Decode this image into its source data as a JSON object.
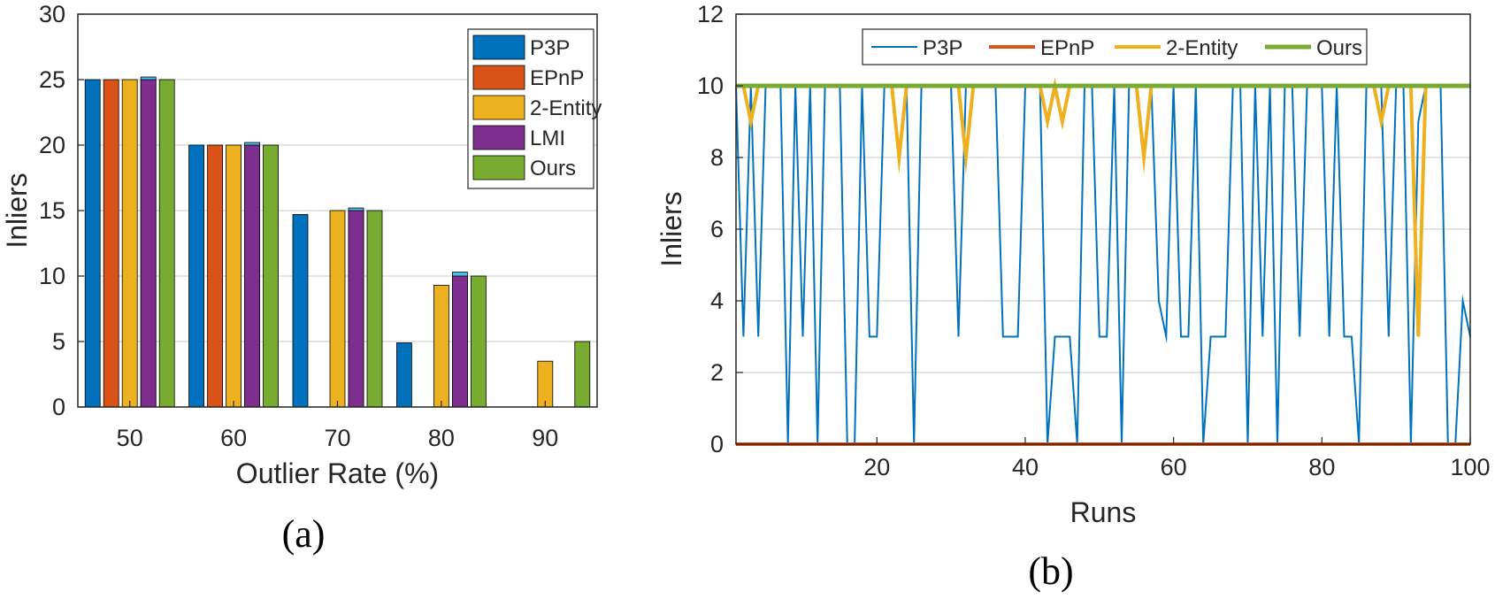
{
  "chart_data": [
    {
      "panel": "(a)",
      "type": "bar",
      "xlabel": "Outlier Rate (%)",
      "ylabel": "Inliers",
      "ylim": [
        0,
        30
      ],
      "yticks": [
        0,
        5,
        10,
        15,
        20,
        25,
        30
      ],
      "categories": [
        "50",
        "60",
        "70",
        "80",
        "90"
      ],
      "grid": "horizontal",
      "legend_position": "top-right",
      "series": [
        {
          "name": "P3P",
          "color": "#0072BD",
          "values": [
            25,
            20,
            14.7,
            4.9,
            0
          ]
        },
        {
          "name": "EPnP",
          "color": "#D95319",
          "values": [
            25,
            20,
            0,
            0,
            0
          ]
        },
        {
          "name": "2-Entity",
          "color": "#EDB120",
          "values": [
            25,
            20,
            15,
            9.3,
            3.5
          ]
        },
        {
          "name": "LMI",
          "color": "#7E2F8E",
          "values": [
            25,
            20,
            15,
            10,
            0
          ],
          "cap_values": [
            25.2,
            20.2,
            15.2,
            10.3,
            0
          ],
          "cap_color": "#4DBEEE"
        },
        {
          "name": "Ours",
          "color": "#77AC30",
          "values": [
            25,
            20,
            15,
            10,
            5
          ]
        }
      ]
    },
    {
      "panel": "(b)",
      "type": "line",
      "xlabel": "Runs",
      "ylabel": "Inliers",
      "xlim": [
        1,
        100
      ],
      "ylim": [
        0,
        12
      ],
      "xticks": [
        20,
        40,
        60,
        80,
        100
      ],
      "yticks": [
        0,
        2,
        4,
        6,
        8,
        10,
        12
      ],
      "grid": "horizontal",
      "legend_position": "top",
      "x": [
        1,
        2,
        3,
        4,
        5,
        6,
        7,
        8,
        9,
        10,
        11,
        12,
        13,
        14,
        15,
        16,
        17,
        18,
        19,
        20,
        21,
        22,
        23,
        24,
        25,
        26,
        27,
        28,
        29,
        30,
        31,
        32,
        33,
        34,
        35,
        36,
        37,
        38,
        39,
        40,
        41,
        42,
        43,
        44,
        45,
        46,
        47,
        48,
        49,
        50,
        51,
        52,
        53,
        54,
        55,
        56,
        57,
        58,
        59,
        60,
        61,
        62,
        63,
        64,
        65,
        66,
        67,
        68,
        69,
        70,
        71,
        72,
        73,
        74,
        75,
        76,
        77,
        78,
        79,
        80,
        81,
        82,
        83,
        84,
        85,
        86,
        87,
        88,
        89,
        90,
        91,
        92,
        93,
        94,
        95,
        96,
        97,
        98,
        99,
        100
      ],
      "series": [
        {
          "name": "P3P",
          "color": "#0072BD",
          "width": 2,
          "values": [
            10,
            3,
            10,
            3,
            10,
            10,
            10,
            0,
            10,
            3,
            10,
            0,
            10,
            10,
            10,
            0,
            0,
            10,
            3,
            3,
            10,
            10,
            10,
            10,
            0,
            10,
            10,
            10,
            10,
            10,
            3,
            10,
            10,
            10,
            10,
            10,
            3,
            3,
            3,
            10,
            10,
            10,
            0,
            3,
            3,
            3,
            0,
            10,
            10,
            3,
            3,
            10,
            0,
            10,
            10,
            10,
            10,
            4,
            3,
            10,
            3,
            3,
            10,
            0,
            3,
            3,
            3,
            10,
            10,
            0,
            10,
            3,
            10,
            0,
            10,
            10,
            3,
            10,
            10,
            10,
            3,
            10,
            3,
            3,
            0,
            10,
            10,
            10,
            3,
            10,
            10,
            0,
            9,
            10,
            10,
            10,
            0,
            0,
            4,
            3
          ]
        },
        {
          "name": "EPnP",
          "color": "#D95319",
          "width": 4,
          "values": [
            0,
            0,
            0,
            0,
            0,
            0,
            0,
            0,
            0,
            0,
            0,
            0,
            0,
            0,
            0,
            0,
            0,
            0,
            0,
            0,
            0,
            0,
            0,
            0,
            0,
            0,
            0,
            0,
            0,
            0,
            0,
            0,
            0,
            0,
            0,
            0,
            0,
            0,
            0,
            0,
            0,
            0,
            0,
            0,
            0,
            0,
            0,
            0,
            0,
            0,
            0,
            0,
            0,
            0,
            0,
            0,
            0,
            0,
            0,
            0,
            0,
            0,
            0,
            0,
            0,
            0,
            0,
            0,
            0,
            0,
            0,
            0,
            0,
            0,
            0,
            0,
            0,
            0,
            0,
            0,
            0,
            0,
            0,
            0,
            0,
            0,
            0,
            0,
            0,
            0,
            0,
            0,
            0,
            0,
            0,
            0,
            0,
            0,
            0,
            0
          ]
        },
        {
          "name": "2-Entity",
          "color": "#EDB120",
          "width": 4,
          "values": [
            10,
            10,
            9,
            10,
            10,
            10,
            10,
            10,
            10,
            10,
            10,
            10,
            10,
            10,
            10,
            10,
            10,
            10,
            10,
            10,
            10,
            10,
            8,
            10,
            10,
            10,
            10,
            10,
            10,
            10,
            10,
            8,
            10,
            10,
            10,
            10,
            10,
            10,
            10,
            10,
            10,
            10,
            9,
            10,
            9,
            10,
            10,
            10,
            10,
            10,
            10,
            10,
            10,
            10,
            10,
            8,
            10,
            10,
            10,
            10,
            10,
            10,
            10,
            10,
            10,
            10,
            10,
            10,
            10,
            10,
            10,
            10,
            10,
            10,
            10,
            10,
            10,
            10,
            10,
            10,
            10,
            10,
            10,
            10,
            10,
            10,
            10,
            9,
            10,
            10,
            10,
            10,
            3,
            10,
            10,
            10,
            10,
            10,
            10,
            10
          ]
        },
        {
          "name": "Ours",
          "color": "#77AC30",
          "width": 5,
          "values": [
            10,
            10,
            10,
            10,
            10,
            10,
            10,
            10,
            10,
            10,
            10,
            10,
            10,
            10,
            10,
            10,
            10,
            10,
            10,
            10,
            10,
            10,
            10,
            10,
            10,
            10,
            10,
            10,
            10,
            10,
            10,
            10,
            10,
            10,
            10,
            10,
            10,
            10,
            10,
            10,
            10,
            10,
            10,
            10,
            10,
            10,
            10,
            10,
            10,
            10,
            10,
            10,
            10,
            10,
            10,
            10,
            10,
            10,
            10,
            10,
            10,
            10,
            10,
            10,
            10,
            10,
            10,
            10,
            10,
            10,
            10,
            10,
            10,
            10,
            10,
            10,
            10,
            10,
            10,
            10,
            10,
            10,
            10,
            10,
            10,
            10,
            10,
            10,
            10,
            10,
            10,
            10,
            10,
            10,
            10,
            10,
            10,
            10,
            10,
            10
          ]
        }
      ]
    }
  ],
  "captions": {
    "a": "(a)",
    "b": "(b)"
  }
}
